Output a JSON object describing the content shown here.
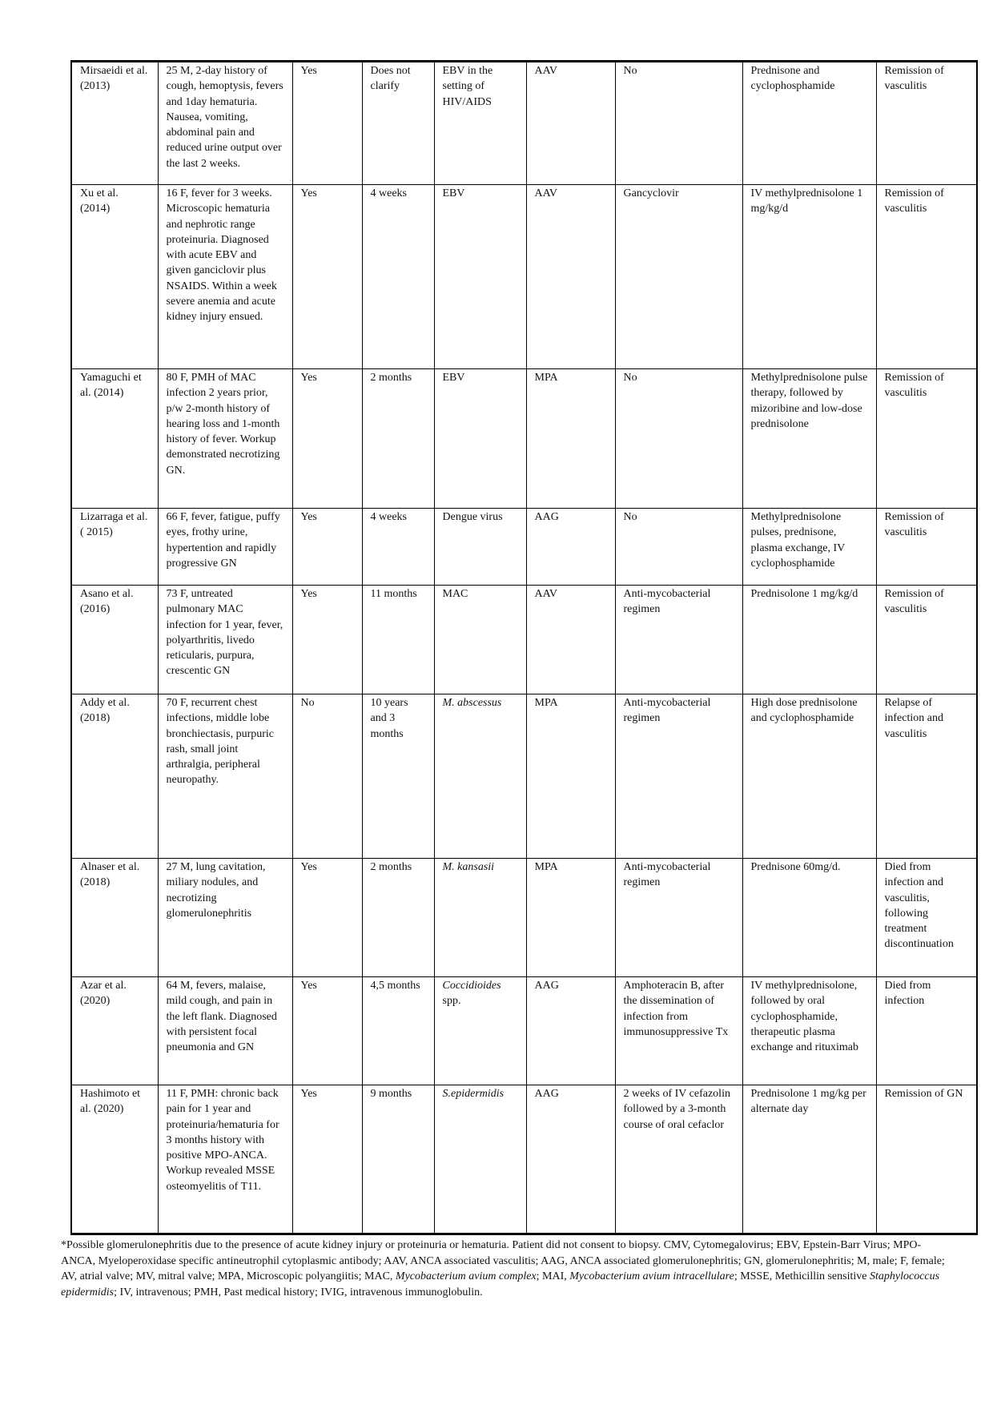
{
  "rows": [
    {
      "study": "Mirsaeidi et al. (2013)",
      "presentation": "25 M, 2-day history of cough, hemoptysis, fevers and 1day hematuria. Nausea, vomiting, abdominal pain and reduced urine output over the last 2 weeks.",
      "anca": "Yes",
      "duration": "Does not clarify",
      "pathogen": "EBV in the setting of HIV/AIDS",
      "pathogen_italic": false,
      "diagnosis": "AAV",
      "anti_infective": "No",
      "immunosuppression": "Prednisone and cyclophosphamide",
      "outcome": "Remission of vasculitis"
    },
    {
      "study": "Xu et al. (2014)",
      "presentation": "16 F, fever for 3 weeks. Microscopic hematuria and nephrotic range proteinuria. Diagnosed with acute EBV and given ganciclovir plus NSAIDS. Within a week severe anemia and acute kidney injury ensued.",
      "anca": "Yes",
      "duration": "4 weeks",
      "pathogen": "EBV",
      "pathogen_italic": false,
      "diagnosis": "AAV",
      "anti_infective": "Gancyclovir",
      "immunosuppression": "IV methylprednisolone 1 mg/kg/d",
      "outcome": "Remission of vasculitis"
    },
    {
      "study": "Yamaguchi et al. (2014)",
      "presentation": "80 F, PMH of MAC infection 2 years prior, p/w 2-month history of hearing loss and 1-month history of fever. Workup demonstrated necrotizing GN.",
      "anca": "Yes",
      "duration": "2 months",
      "pathogen": "EBV",
      "pathogen_italic": false,
      "diagnosis": "MPA",
      "anti_infective": "No",
      "immunosuppression": "Methylprednisolone pulse therapy, followed by mizoribine and low-dose prednisolone",
      "outcome": "Remission of vasculitis"
    },
    {
      "study": "Lizarraga et al. ( 2015)",
      "presentation": "66 F, fever, fatigue, puffy eyes, frothy urine, hypertention and rapidly progressive GN",
      "anca": "Yes",
      "duration": "4 weeks",
      "pathogen": "Dengue virus",
      "pathogen_italic": false,
      "diagnosis": "AAG",
      "anti_infective": "No",
      "immunosuppression": "Methylprednisolone pulses, prednisone, plasma exchange, IV cyclophosphamide",
      "outcome": "Remission of vasculitis"
    },
    {
      "study": "Asano et al. (2016)",
      "presentation": "73 F, untreated pulmonary MAC infection for 1 year, fever, polyarthritis, livedo reticularis, purpura, crescentic GN",
      "anca": "Yes",
      "duration": "11 months",
      "pathogen": "MAC",
      "pathogen_italic": false,
      "diagnosis": "AAV",
      "anti_infective": "Anti-mycobacterial regimen",
      "immunosuppression": "Prednisolone 1 mg/kg/d",
      "outcome": "Remission of vasculitis"
    },
    {
      "study": "Addy et al. (2018)",
      "presentation": "70 F, recurrent chest infections, middle lobe bronchiectasis, purpuric rash, small joint arthralgia, peripheral neuropathy.",
      "anca": "No",
      "duration": "10 years and 3 months",
      "pathogen": "M. abscessus",
      "pathogen_italic": true,
      "diagnosis": "MPA",
      "anti_infective": "Anti-mycobacterial regimen",
      "immunosuppression": "High dose prednisolone and cyclophosphamide",
      "outcome": "Relapse of infection and vasculitis"
    },
    {
      "study": "Alnaser et al. (2018)",
      "presentation": "27 M, lung cavitation, miliary nodules, and necrotizing glomerulonephritis",
      "anca": "Yes",
      "duration": "2 months",
      "pathogen": "M. kansasii",
      "pathogen_italic": true,
      "diagnosis": "MPA",
      "anti_infective": "Anti-mycobacterial regimen",
      "immunosuppression": "Prednisone 60mg/d.",
      "outcome": "Died from infection and vasculitis, following treatment discontinuation"
    },
    {
      "study": "Azar et al. (2020)",
      "presentation": "64 M, fevers, malaise, mild cough, and pain in the left flank. Diagnosed with persistent focal pneumonia and GN",
      "anca": "Yes",
      "duration": "4,5 months",
      "pathogen": "Coccidioides",
      "pathogen_suffix": " spp.",
      "pathogen_italic": true,
      "diagnosis": "AAG",
      "anti_infective": "Amphoteracin B, after the dissemination of infection from immunosuppressive Tx",
      "immunosuppression": "IV methylprednisolone, followed by oral cyclophosphamide, therapeutic plasma exchange and rituximab",
      "outcome": "Died from infection"
    },
    {
      "study": "Hashimoto et al. (2020)",
      "presentation": "11 F, PMH: chronic back pain for 1 year and proteinuria/hematuria for 3 months history with positive MPO-ANCA. Workup revealed MSSE osteomyelitis of T11.",
      "anca": "Yes",
      "duration": "9 months",
      "pathogen": "S.epidermidis",
      "pathogen_italic": true,
      "diagnosis": "AAG",
      "anti_infective": "2 weeks of IV cefazolin followed by a 3-month course of oral cefaclor",
      "immunosuppression": "Prednisolone 1 mg/kg per alternate day",
      "outcome": "Remission of GN"
    }
  ],
  "footnote": [
    {
      "t": "*Possible glomerulonephritis due to the presence of acute kidney injury or proteinuria or hematuria. Patient did not consent to biopsy. CMV, Cytomegalovirus; EBV, Epstein-Barr Virus; MPO-ANCA, Myeloperoxidase specific antineutrophil cytoplasmic antibody; AAV, ANCA associated vasculitis; AAG,  ANCA associated glomerulonephritis; GN,  glomerulonephritis; M, male; F, female; AV, atrial valve; MV, mitral valve; MPA, Microscopic polyangiitis; MAC, ",
      "i": false
    },
    {
      "t": "Mycobacterium avium complex",
      "i": true
    },
    {
      "t": "; MAI, ",
      "i": false
    },
    {
      "t": "Mycobacterium avium intracellulare",
      "i": true
    },
    {
      "t": "; MSSE, Methicillin sensitive ",
      "i": false
    },
    {
      "t": "Staphylococcus epidermidis",
      "i": true
    },
    {
      "t": "; IV, intravenous; PMH, Past medical history; IVIG, intravenous immunoglobulin.",
      "i": false
    }
  ]
}
